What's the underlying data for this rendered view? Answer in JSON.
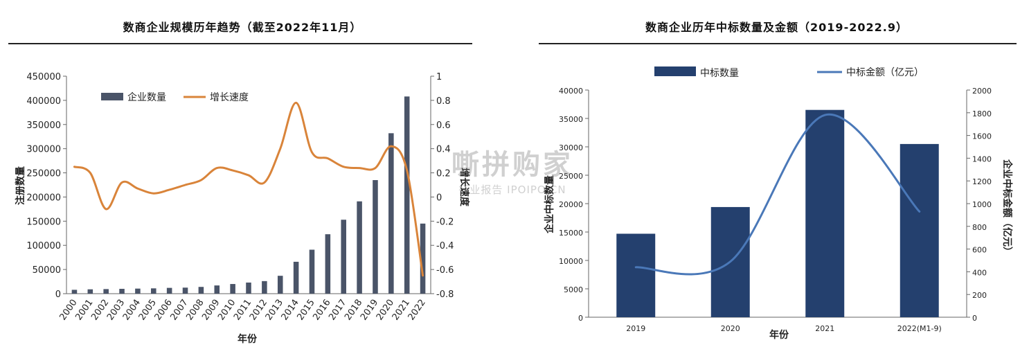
{
  "watermark": {
    "main": "嘶拼购家",
    "sub": "行业报告 IPOIPO.CN"
  },
  "chart_data": [
    {
      "type": "bar+line",
      "title": "数商企业规模历年趋势（截至2022年11月）",
      "xlabel": "年份",
      "ylabel": "注册数量",
      "y2label": "增长速度",
      "legend_position": "top-left",
      "grid": false,
      "categories": [
        "2000",
        "2001",
        "2002",
        "2003",
        "2004",
        "2005",
        "2006",
        "2007",
        "2008",
        "2009",
        "2010",
        "2011",
        "2012",
        "2013",
        "2014",
        "2015",
        "2016",
        "2017",
        "2018",
        "2019",
        "2020",
        "2021",
        "2022"
      ],
      "ylim": [
        0,
        450000
      ],
      "yticks": [
        "0",
        "50000",
        "100000",
        "150000",
        "200000",
        "250000",
        "300000",
        "350000",
        "400000",
        "450000"
      ],
      "y2lim": [
        -0.8,
        1
      ],
      "y2ticks": [
        "-0.8",
        "-0.6",
        "-0.4",
        "-0.2",
        "0",
        "0.2",
        "0.4",
        "0.6",
        "0.8",
        "1"
      ],
      "series": [
        {
          "name": "企业数量",
          "type": "bar",
          "color": "#4a5468",
          "values": [
            8000,
            9000,
            9500,
            10000,
            10500,
            11000,
            12000,
            12500,
            14000,
            17000,
            20000,
            23000,
            26000,
            37000,
            66000,
            91000,
            123000,
            153000,
            191000,
            235000,
            332000,
            408000,
            145000
          ]
        },
        {
          "name": "增长速度",
          "type": "line",
          "color": "#d9843a",
          "values": [
            0.25,
            0.2,
            -0.1,
            0.12,
            0.07,
            0.03,
            0.06,
            0.1,
            0.14,
            0.24,
            0.22,
            0.18,
            0.12,
            0.4,
            0.78,
            0.37,
            0.32,
            0.25,
            0.24,
            0.24,
            0.42,
            0.22,
            -0.65
          ]
        }
      ]
    },
    {
      "type": "bar+line",
      "title": "数商企业历年中标数量及金额（2019-2022.9）",
      "xlabel": "年份",
      "ylabel": "企业中标数量",
      "y2label": "企业中标金额（亿元）",
      "legend_position": "top",
      "grid": false,
      "categories": [
        "2019",
        "2020",
        "2021",
        "2022(M1-9)"
      ],
      "ylim": [
        0,
        40000
      ],
      "yticks": [
        "0",
        "5000",
        "10000",
        "15000",
        "20000",
        "25000",
        "30000",
        "35000",
        "40000"
      ],
      "y2lim": [
        0,
        2000
      ],
      "y2ticks": [
        "0",
        "200",
        "400",
        "600",
        "800",
        "1000",
        "1200",
        "1400",
        "1600",
        "1800",
        "2000"
      ],
      "series": [
        {
          "name": "中标数量",
          "type": "bar",
          "color": "#24406e",
          "values": [
            14700,
            19400,
            36500,
            30500
          ]
        },
        {
          "name": "中标金额（亿元）",
          "type": "line",
          "color": "#4a78b8",
          "values": [
            440,
            490,
            1780,
            930
          ]
        }
      ]
    }
  ]
}
